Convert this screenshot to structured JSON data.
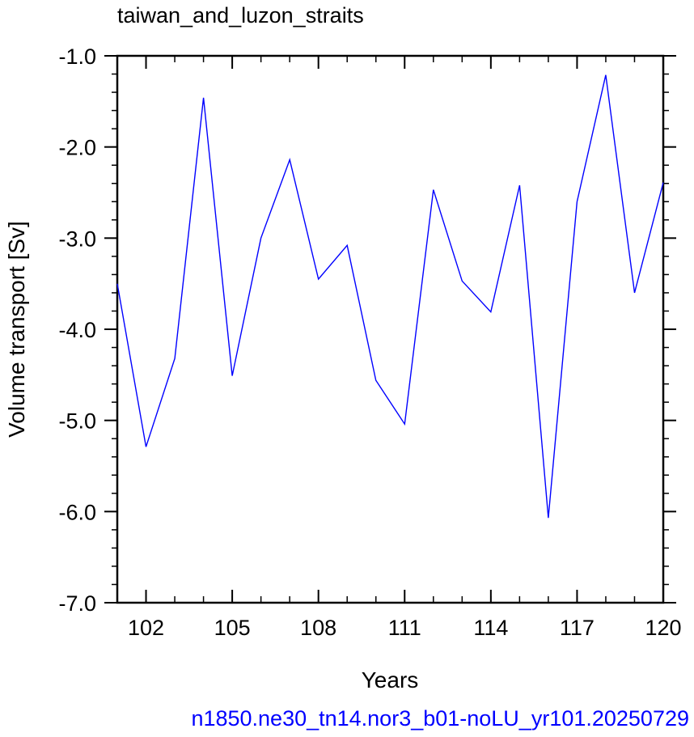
{
  "chart_data": {
    "type": "line",
    "title": "taiwan_and_luzon_straits",
    "xlabel": "Years",
    "ylabel": "Volume transport [Sv]",
    "footer": "n1850.ne30_tn14.nor3_b01-noLU_yr101.20250729",
    "xlim": [
      101,
      120
    ],
    "ylim": [
      -7.0,
      -1.0
    ],
    "x_ticks": [
      102,
      105,
      108,
      111,
      114,
      117,
      120
    ],
    "y_ticks": [
      "-1.0",
      "-2.0",
      "-3.0",
      "-4.0",
      "-5.0",
      "-6.0",
      "-7.0"
    ],
    "series": [
      {
        "color": "#0000ff",
        "x": [
          101,
          102,
          103,
          104,
          105,
          106,
          107,
          108,
          109,
          110,
          111,
          112,
          113,
          114,
          115,
          116,
          117,
          118,
          119,
          120
        ],
        "values": [
          -3.5,
          -5.29,
          -4.32,
          -1.46,
          -4.51,
          -3.0,
          -2.14,
          -3.45,
          -3.08,
          -4.56,
          -5.04,
          -2.47,
          -3.47,
          -3.81,
          -2.42,
          -6.07,
          -2.6,
          -1.21,
          -3.6,
          -2.39
        ]
      }
    ]
  }
}
